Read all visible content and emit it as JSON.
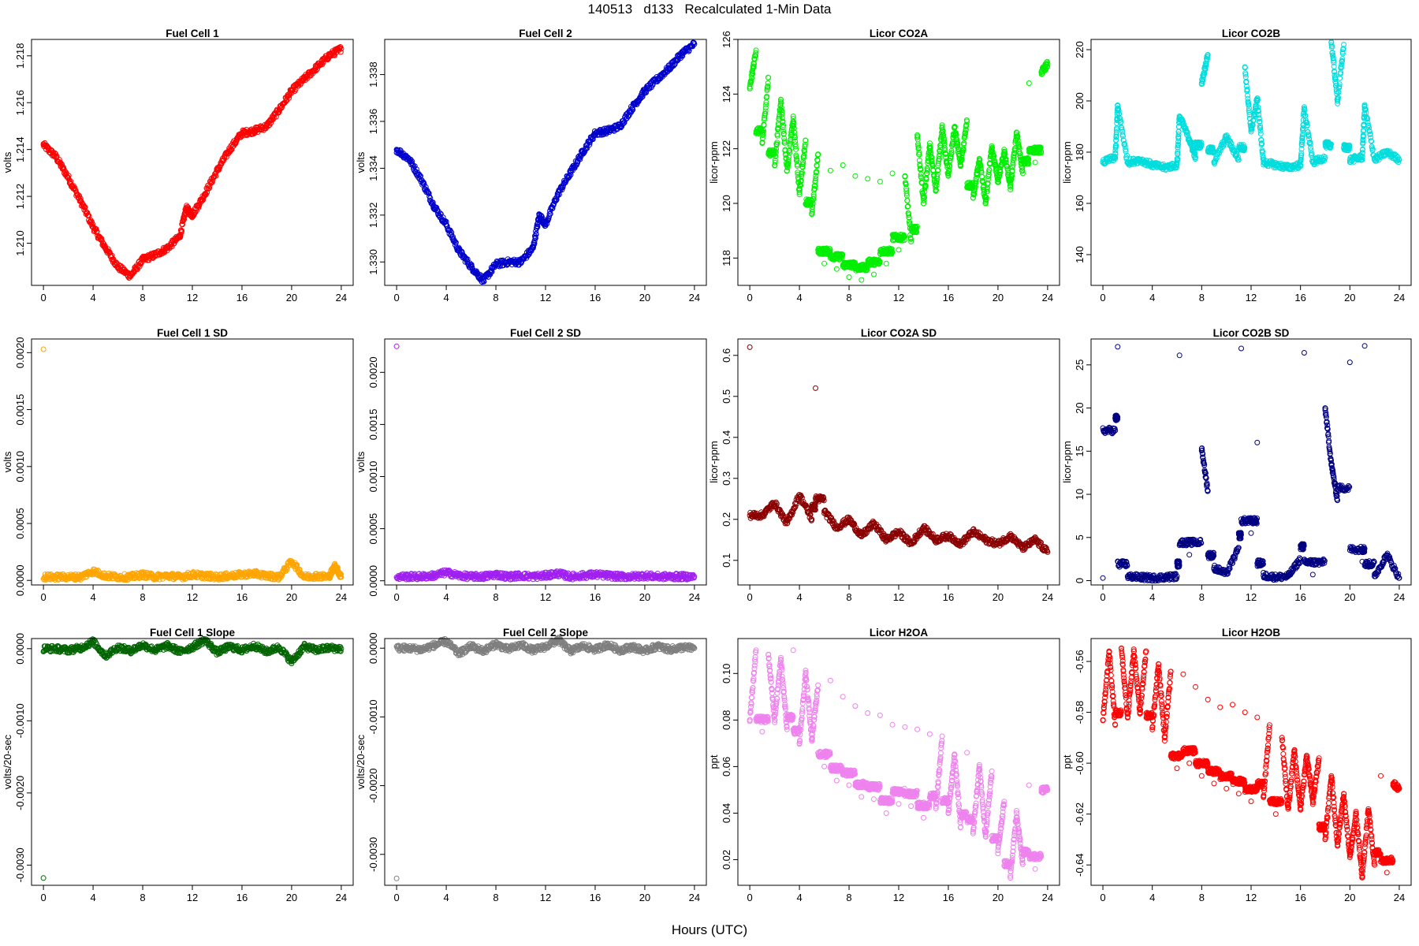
{
  "title": "140513   d133   Recalculated 1-Min Data",
  "xlabel": "Hours (UTC)",
  "chart_data": [
    {
      "type": "scatter",
      "title": "Fuel Cell 1",
      "ylabel": "volts",
      "color": "#ff0000",
      "xlim": [
        0,
        24
      ],
      "xticks": [
        0,
        4,
        8,
        12,
        16,
        20,
        24
      ],
      "ylim": [
        1.2082,
        1.2187
      ],
      "yticks": [
        1.21,
        1.212,
        1.214,
        1.216,
        1.218
      ],
      "ytick_labels": [
        "1.210",
        "1.212",
        "1.214",
        "1.216",
        "1.218"
      ],
      "x": [
        0,
        1,
        2,
        3,
        4,
        5,
        6,
        7,
        8,
        9,
        10,
        11,
        11.5,
        12,
        13,
        14,
        15,
        16,
        17,
        18,
        19,
        20,
        21,
        22,
        23,
        24
      ],
      "y": [
        1.2142,
        1.2137,
        1.2128,
        1.2118,
        1.2107,
        1.2098,
        1.209,
        1.2086,
        1.2093,
        1.2095,
        1.2098,
        1.2103,
        1.2115,
        1.2112,
        1.2121,
        1.2131,
        1.214,
        1.2147,
        1.2148,
        1.215,
        1.2157,
        1.2165,
        1.217,
        1.2175,
        1.218,
        1.2183
      ]
    },
    {
      "type": "scatter",
      "title": "Fuel Cell 2",
      "ylabel": "volts",
      "color": "#0000cc",
      "xlim": [
        0,
        24
      ],
      "xticks": [
        0,
        4,
        8,
        12,
        16,
        20,
        24
      ],
      "ylim": [
        1.329,
        1.3395
      ],
      "yticks": [
        1.33,
        1.332,
        1.334,
        1.336,
        1.338
      ],
      "ytick_labels": [
        "1.330",
        "1.332",
        "1.334",
        "1.336",
        "1.338"
      ],
      "x": [
        0,
        1,
        2,
        3,
        4,
        5,
        6,
        7,
        8,
        9,
        10,
        11,
        11.5,
        12,
        13,
        14,
        15,
        16,
        17,
        18,
        19,
        20,
        21,
        22,
        23,
        24
      ],
      "y": [
        1.3348,
        1.3344,
        1.3335,
        1.3324,
        1.3316,
        1.3305,
        1.3298,
        1.3292,
        1.3299,
        1.33,
        1.33,
        1.3306,
        1.332,
        1.3316,
        1.3329,
        1.3338,
        1.3347,
        1.3355,
        1.3356,
        1.3358,
        1.3366,
        1.3373,
        1.3378,
        1.3383,
        1.3389,
        1.3393
      ]
    },
    {
      "type": "scatter",
      "title": "Licor CO2A",
      "ylabel": "licor-ppm",
      "color": "#00ee00",
      "xlim": [
        0,
        24
      ],
      "xticks": [
        0,
        4,
        8,
        12,
        16,
        20,
        24
      ],
      "ylim": [
        117.0,
        126.0
      ],
      "yticks": [
        118,
        120,
        122,
        124,
        126
      ],
      "ytick_labels": [
        "118",
        "120",
        "122",
        "124",
        "126"
      ],
      "x": [
        0,
        0.5,
        1,
        1.5,
        2,
        2.5,
        3,
        3.5,
        4,
        4.5,
        5,
        5.5,
        6,
        6.5,
        7,
        7.5,
        8,
        8.5,
        9,
        9.5,
        10,
        10.5,
        11,
        11.5,
        12,
        12.5,
        13,
        13.5,
        14,
        14.5,
        15,
        15.5,
        16,
        16.5,
        17,
        17.5,
        18,
        18.5,
        19,
        19.5,
        20,
        20.5,
        21,
        21.5,
        22,
        22.5,
        23,
        23.5,
        24
      ],
      "y": [
        124.2,
        125.6,
        122.2,
        124.6,
        121.4,
        123.8,
        121.2,
        123.1,
        120.4,
        122.3,
        119.6,
        121.8,
        117.8,
        121.2,
        117.6,
        121.4,
        117.3,
        121.0,
        117.2,
        120.9,
        117.4,
        120.8,
        117.8,
        121.1,
        118.3,
        121.0,
        118.6,
        122.5,
        120.0,
        122.1,
        120.5,
        122.8,
        121.0,
        122.8,
        121.4,
        123.0,
        120.2,
        121.6,
        120.0,
        122.1,
        120.8,
        121.9,
        120.6,
        122.6,
        121.1,
        124.4,
        121.5,
        124.8,
        125.1
      ]
    },
    {
      "type": "scatter",
      "title": "Licor CO2B",
      "ylabel": "licor-ppm",
      "color": "#00dddd",
      "xlim": [
        0,
        24
      ],
      "xticks": [
        0,
        4,
        8,
        12,
        16,
        20,
        24
      ],
      "ylim": [
        128,
        224
      ],
      "yticks": [
        140,
        160,
        180,
        200,
        220
      ],
      "ytick_labels": [
        "140",
        "160",
        "180",
        "200",
        "220"
      ],
      "x": [
        0,
        1,
        1.2,
        2,
        3,
        4,
        5,
        6,
        6.2,
        7,
        7.5,
        8,
        8.5,
        9,
        10,
        11,
        11.5,
        12,
        12.5,
        13,
        14,
        15,
        16,
        16.3,
        17,
        18,
        18.5,
        19,
        19.5,
        20,
        21,
        21.2,
        22,
        23,
        24
      ],
      "y": [
        176,
        178,
        198,
        176,
        177,
        175,
        174,
        175,
        194,
        185,
        178,
        207,
        218,
        176,
        186,
        177,
        213,
        188,
        201,
        176,
        175,
        174,
        175,
        197,
        176,
        178,
        223,
        200,
        222,
        177,
        178,
        198,
        177,
        180,
        177
      ]
    },
    {
      "type": "scatter",
      "title": "Fuel Cell 1 SD",
      "ylabel": "volts",
      "color": "#ffa500",
      "xlim": [
        0,
        24
      ],
      "xticks": [
        0,
        4,
        8,
        12,
        16,
        20,
        24
      ],
      "ylim": [
        -4e-05,
        0.00212
      ],
      "yticks": [
        0.0,
        0.0005,
        0.001,
        0.0015,
        0.002
      ],
      "ytick_labels": [
        "0.0000",
        "0.0005",
        "0.0010",
        "0.0015",
        "0.0020"
      ],
      "x": [
        0,
        1,
        2,
        3,
        4,
        5,
        6,
        7,
        8,
        9,
        10,
        11,
        12,
        13,
        14,
        15,
        16,
        17,
        18,
        19,
        20,
        21,
        22,
        23,
        23.5,
        24
      ],
      "y": [
        0.00203,
        3e-05,
        3e-05,
        3e-05,
        8e-05,
        4e-05,
        3e-05,
        3e-05,
        5e-05,
        3e-05,
        4e-05,
        3e-05,
        5e-05,
        4e-05,
        3e-05,
        4e-05,
        5e-05,
        6e-05,
        4e-05,
        3e-05,
        0.00017,
        3e-05,
        4e-05,
        3e-05,
        0.00013,
        3e-05
      ]
    },
    {
      "type": "scatter",
      "title": "Fuel Cell 2 SD",
      "ylabel": "volts",
      "color": "#a020f0",
      "xlim": [
        0,
        24
      ],
      "xticks": [
        0,
        4,
        8,
        12,
        16,
        20,
        24
      ],
      "ylim": [
        -4e-05,
        0.00232
      ],
      "yticks": [
        0.0,
        0.0005,
        0.001,
        0.0015,
        0.002
      ],
      "ytick_labels": [
        "0.0000",
        "0.0005",
        "0.0010",
        "0.0015",
        "0.0020"
      ],
      "x": [
        0,
        1,
        2,
        3,
        4,
        5,
        6,
        7,
        8,
        9,
        10,
        11,
        12,
        13,
        14,
        15,
        16,
        17,
        18,
        19,
        20,
        21,
        22,
        23,
        24
      ],
      "y": [
        0.00225,
        4e-05,
        4e-05,
        5e-05,
        8e-05,
        5e-05,
        4e-05,
        4e-05,
        6e-05,
        4e-05,
        5e-05,
        4e-05,
        5e-05,
        7e-05,
        4e-05,
        5e-05,
        6e-05,
        5e-05,
        4e-05,
        4e-05,
        5e-05,
        4e-05,
        4e-05,
        4e-05,
        4e-05
      ]
    },
    {
      "type": "scatter",
      "title": "Licor CO2A SD",
      "ylabel": "licor-ppm",
      "color": "#8b0000",
      "xlim": [
        0,
        24
      ],
      "xticks": [
        0,
        4,
        8,
        12,
        16,
        20,
        24
      ],
      "ylim": [
        0.04,
        0.64
      ],
      "yticks": [
        0.1,
        0.2,
        0.3,
        0.4,
        0.5,
        0.6
      ],
      "ytick_labels": [
        "0.1",
        "0.2",
        "0.3",
        "0.4",
        "0.5",
        "0.6"
      ],
      "x": [
        0,
        1,
        2,
        3,
        4,
        5,
        5.3,
        6,
        7,
        8,
        9,
        10,
        11,
        12,
        13,
        14,
        15,
        16,
        17,
        18,
        19,
        20,
        21,
        22,
        23,
        24
      ],
      "y": [
        0.62,
        0.21,
        0.24,
        0.19,
        0.26,
        0.2,
        0.52,
        0.22,
        0.18,
        0.2,
        0.16,
        0.19,
        0.15,
        0.17,
        0.14,
        0.18,
        0.15,
        0.16,
        0.14,
        0.17,
        0.15,
        0.14,
        0.16,
        0.13,
        0.15,
        0.12
      ]
    },
    {
      "type": "scatter",
      "title": "Licor CO2B SD",
      "ylabel": "licor-ppm",
      "color": "#000080",
      "xlim": [
        0,
        24
      ],
      "xticks": [
        0,
        4,
        8,
        12,
        16,
        20,
        24
      ],
      "ylim": [
        -0.5,
        28
      ],
      "yticks": [
        0,
        5,
        10,
        15,
        20,
        25
      ],
      "ytick_labels": [
        "0",
        "5",
        "10",
        "15",
        "20",
        "25"
      ],
      "x": [
        0,
        1,
        1.2,
        2,
        3,
        4,
        5,
        6,
        6.2,
        7,
        8,
        8.5,
        9,
        10,
        11,
        11.2,
        12,
        12.5,
        13,
        14,
        15,
        16,
        16.3,
        17,
        18,
        18.5,
        19,
        20,
        21,
        21.2,
        22,
        23,
        24
      ],
      "y": [
        0.3,
        17.4,
        27.1,
        0.5,
        0.4,
        0.3,
        0.4,
        0.5,
        26.1,
        3.0,
        15.3,
        10.4,
        1.5,
        0.8,
        3.8,
        26.9,
        5.5,
        16.0,
        0.6,
        0.4,
        0.5,
        2.5,
        26.4,
        0.7,
        20.0,
        13.5,
        9.3,
        25.3,
        2.2,
        27.2,
        0.5,
        3.0,
        0.3
      ]
    },
    {
      "type": "scatter",
      "title": "Fuel Cell 1 Slope",
      "ylabel": "volts/20-sec",
      "color": "#006400",
      "xlim": [
        0,
        24
      ],
      "xticks": [
        0,
        4,
        8,
        12,
        16,
        20,
        24
      ],
      "ylim": [
        -0.00328,
        0.00014
      ],
      "yticks": [
        -0.003,
        -0.002,
        -0.001,
        0.0
      ],
      "ytick_labels": [
        "-0.0030",
        "-0.0020",
        "-0.0010",
        "0.0000"
      ],
      "x": [
        0,
        1,
        2,
        3,
        4,
        5,
        6,
        7,
        8,
        9,
        10,
        11,
        12,
        13,
        14,
        15,
        16,
        17,
        18,
        19,
        20,
        21,
        22,
        23,
        24
      ],
      "y": [
        -0.00318,
        0.0,
        -2e-05,
        1e-05,
        0.0001,
        -0.0001,
        2e-05,
        -3e-05,
        5e-05,
        -2e-05,
        4e-05,
        -4e-05,
        2e-05,
        0.00012,
        -5e-05,
        3e-05,
        -2e-05,
        4e-05,
        -4e-05,
        2e-05,
        -0.00018,
        3e-05,
        -2e-05,
        1e-05,
        0.0
      ]
    },
    {
      "type": "scatter",
      "title": "Fuel Cell 2 Slope",
      "ylabel": "volts/20-sec",
      "color": "#7f7f7f",
      "xlim": [
        0,
        24
      ],
      "xticks": [
        0,
        4,
        8,
        12,
        16,
        20,
        24
      ],
      "ylim": [
        -0.00345,
        0.00014
      ],
      "yticks": [
        -0.003,
        -0.002,
        -0.001,
        0.0
      ],
      "ytick_labels": [
        "-0.0030",
        "-0.0020",
        "-0.0010",
        "0.0000"
      ],
      "x": [
        0,
        1,
        2,
        3,
        4,
        5,
        6,
        7,
        8,
        9,
        10,
        11,
        12,
        13,
        14,
        15,
        16,
        17,
        18,
        19,
        20,
        21,
        22,
        23,
        24
      ],
      "y": [
        -0.00335,
        0.0,
        -2e-05,
        4e-05,
        0.0001,
        -8e-05,
        3e-05,
        -4e-05,
        6e-05,
        -2e-05,
        5e-05,
        -3e-05,
        2e-05,
        0.00012,
        -4e-05,
        3e-05,
        -2e-05,
        5e-05,
        -3e-05,
        2e-05,
        -4e-05,
        3e-05,
        -2e-05,
        1e-05,
        0.0
      ]
    },
    {
      "type": "scatter",
      "title": "Licor H2OA",
      "ylabel": "ppt",
      "color": "#ee82ee",
      "xlim": [
        0,
        24
      ],
      "xticks": [
        0,
        4,
        8,
        12,
        16,
        20,
        24
      ],
      "ylim": [
        0.009,
        0.115
      ],
      "yticks": [
        0.02,
        0.04,
        0.06,
        0.08,
        0.1
      ],
      "ytick_labels": [
        "0.02",
        "0.04",
        "0.06",
        "0.08",
        "0.10"
      ],
      "x": [
        0,
        0.5,
        1,
        1.5,
        2,
        2.5,
        3,
        3.5,
        4,
        4.5,
        5,
        5.5,
        6,
        6.5,
        7,
        7.5,
        8,
        8.5,
        9,
        9.5,
        10,
        10.5,
        11,
        11.5,
        12,
        12.5,
        13,
        13.5,
        14,
        14.5,
        15,
        15.5,
        16,
        16.5,
        17,
        17.5,
        18,
        18.5,
        19,
        19.5,
        20,
        20.5,
        21,
        21.5,
        22,
        22.5,
        23,
        23.5,
        24
      ],
      "y": [
        0.08,
        0.11,
        0.075,
        0.108,
        0.08,
        0.106,
        0.076,
        0.11,
        0.07,
        0.1,
        0.072,
        0.095,
        0.06,
        0.097,
        0.054,
        0.09,
        0.052,
        0.086,
        0.047,
        0.083,
        0.046,
        0.082,
        0.04,
        0.078,
        0.044,
        0.077,
        0.043,
        0.076,
        0.038,
        0.074,
        0.042,
        0.073,
        0.04,
        0.065,
        0.034,
        0.066,
        0.032,
        0.06,
        0.03,
        0.058,
        0.024,
        0.045,
        0.013,
        0.04,
        0.018,
        0.052,
        0.016,
        0.05,
        0.05
      ]
    },
    {
      "type": "scatter",
      "title": "Licor H2OB",
      "ylabel": "ppt",
      "color": "#ff0000",
      "xlim": [
        0,
        24
      ],
      "xticks": [
        0,
        4,
        8,
        12,
        16,
        20,
        24
      ],
      "ylim": [
        -0.648,
        -0.551
      ],
      "yticks": [
        -0.64,
        -0.62,
        -0.6,
        -0.58,
        -0.56
      ],
      "ytick_labels": [
        "-0.64",
        "-0.62",
        "-0.60",
        "-0.58",
        "-0.56"
      ],
      "x": [
        0,
        0.5,
        1,
        1.5,
        2,
        2.5,
        3,
        3.5,
        4,
        4.5,
        5,
        5.5,
        6,
        6.5,
        7,
        7.5,
        8,
        8.5,
        9,
        9.5,
        10,
        10.5,
        11,
        11.5,
        12,
        12.5,
        13,
        13.5,
        14,
        14.5,
        15,
        15.5,
        16,
        16.5,
        17,
        17.5,
        18,
        18.5,
        19,
        19.5,
        20,
        20.5,
        21,
        21.5,
        22,
        22.5,
        23,
        23.5,
        24
      ],
      "y": [
        -0.583,
        -0.556,
        -0.585,
        -0.555,
        -0.582,
        -0.556,
        -0.58,
        -0.556,
        -0.586,
        -0.561,
        -0.59,
        -0.564,
        -0.602,
        -0.565,
        -0.6,
        -0.57,
        -0.605,
        -0.575,
        -0.608,
        -0.578,
        -0.61,
        -0.577,
        -0.612,
        -0.58,
        -0.615,
        -0.582,
        -0.613,
        -0.585,
        -0.62,
        -0.59,
        -0.618,
        -0.595,
        -0.618,
        -0.597,
        -0.615,
        -0.598,
        -0.63,
        -0.605,
        -0.632,
        -0.612,
        -0.637,
        -0.62,
        -0.645,
        -0.618,
        -0.64,
        -0.605,
        -0.643,
        -0.608,
        -0.61
      ]
    }
  ]
}
